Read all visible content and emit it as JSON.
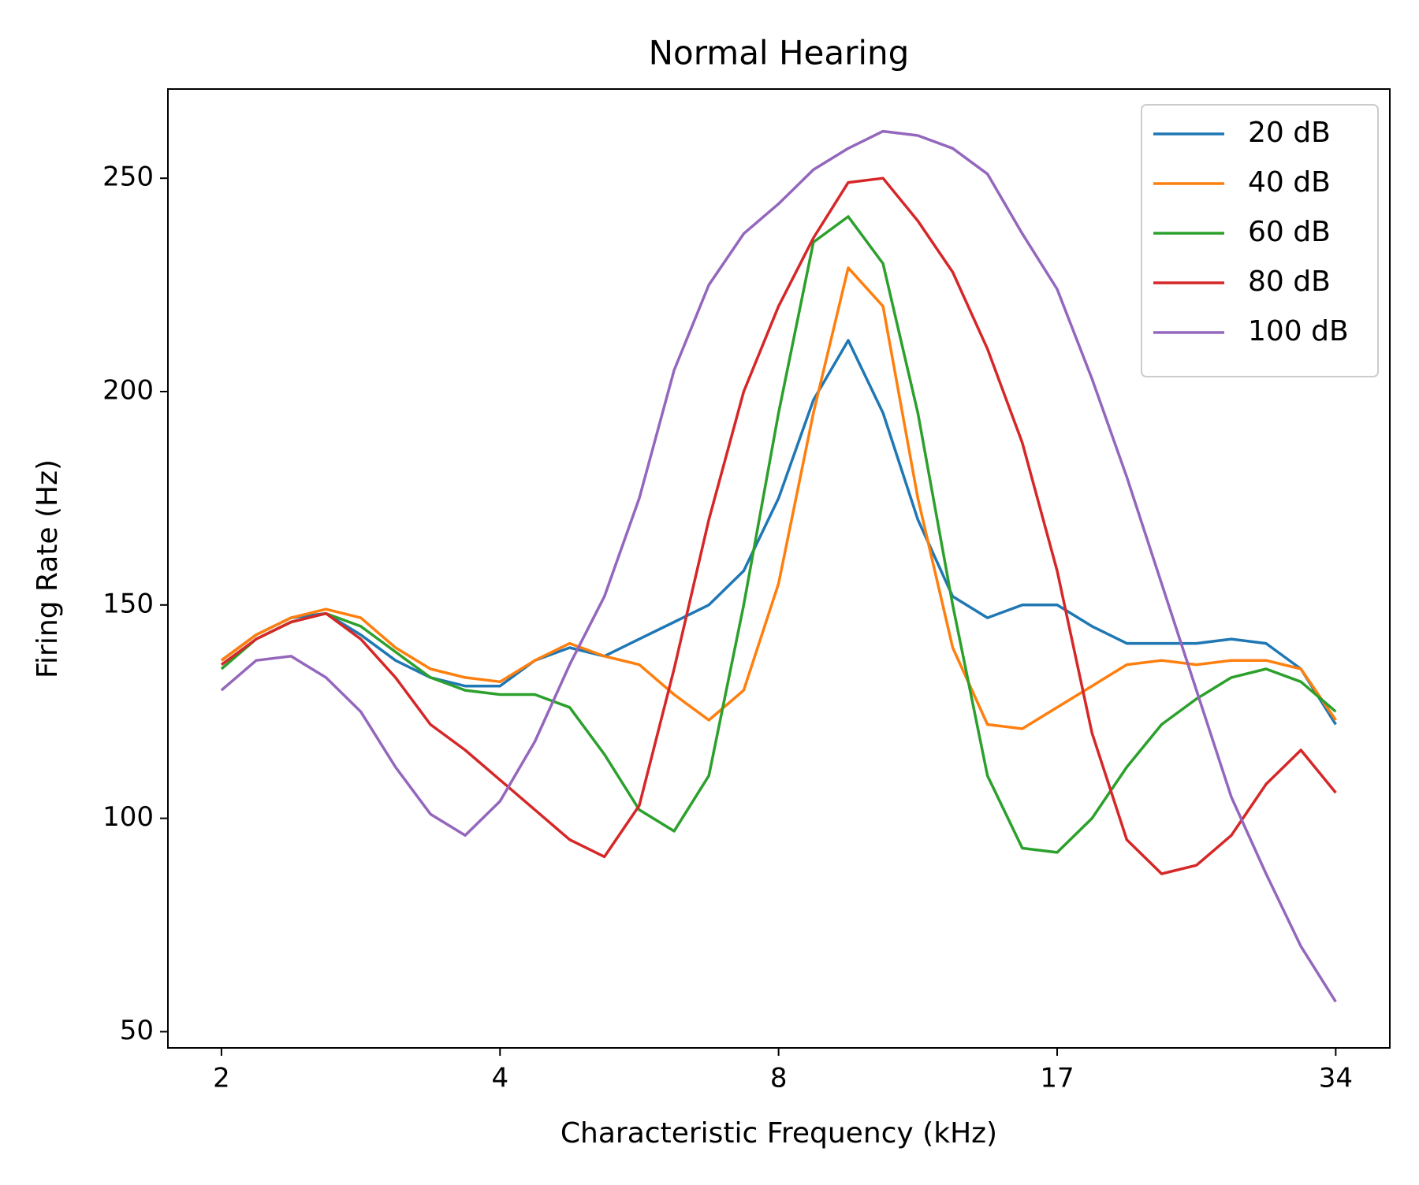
{
  "chart_data": {
    "type": "line",
    "title": "Normal Hearing",
    "x_label": "Characteristic Frequency (kHz)",
    "y_label": "Firing Rate (Hz)",
    "xscale": "log",
    "xlim": [
      1.86,
      38.9
    ],
    "ylim": [
      46.2,
      270.9
    ],
    "xticks": [
      {
        "value": 2.125,
        "label": "2"
      },
      {
        "value": 4.25,
        "label": "4"
      },
      {
        "value": 8.5,
        "label": "8"
      },
      17,
      34
    ],
    "yticks": [
      50,
      100,
      150,
      200,
      250
    ],
    "grid": false,
    "legend": "upper right",
    "x": [
      2.125,
      2.317,
      2.527,
      2.756,
      3.005,
      3.277,
      3.574,
      3.897,
      4.25,
      4.635,
      5.054,
      5.511,
      6.01,
      6.554,
      7.147,
      7.794,
      8.5,
      9.269,
      10.108,
      11.023,
      12.021,
      13.109,
      14.295,
      15.589,
      17,
      18.539,
      20.216,
      22.046,
      24.042,
      26.218,
      28.591,
      31.178,
      34
    ],
    "series": [
      {
        "name": "20 dB",
        "color": "#1f77b4",
        "values": [
          137,
          143,
          147,
          148,
          143,
          137,
          133,
          131,
          131,
          137,
          140,
          138,
          142,
          146,
          150,
          158,
          175,
          198,
          212,
          195,
          170,
          152,
          147,
          150,
          150,
          145,
          141,
          141,
          141,
          142,
          141,
          135,
          122
        ]
      },
      {
        "name": "40 dB",
        "color": "#ff7f0e",
        "values": [
          137,
          143,
          147,
          149,
          147,
          140,
          135,
          133,
          132,
          137,
          141,
          138,
          136,
          129,
          123,
          130,
          155,
          195,
          229,
          220,
          175,
          140,
          122,
          121,
          126,
          131,
          136,
          137,
          136,
          137,
          137,
          135,
          123
        ]
      },
      {
        "name": "60 dB",
        "color": "#2ca02c",
        "values": [
          135,
          142,
          146,
          148,
          145,
          139,
          133,
          130,
          129,
          129,
          126,
          115,
          102,
          97,
          110,
          150,
          195,
          235,
          241,
          230,
          195,
          150,
          110,
          93,
          92,
          100,
          112,
          122,
          128,
          133,
          135,
          132,
          125
        ]
      },
      {
        "name": "80 dB",
        "color": "#d62728",
        "values": [
          136,
          142,
          146,
          148,
          142,
          133,
          122,
          116,
          109,
          102,
          95,
          91,
          103,
          135,
          170,
          200,
          220,
          236,
          249,
          250,
          240,
          228,
          210,
          188,
          158,
          120,
          95,
          87,
          89,
          96,
          108,
          116,
          106
        ]
      },
      {
        "name": "100 dB",
        "color": "#9467bd",
        "values": [
          130,
          137,
          138,
          133,
          125,
          112,
          101,
          96,
          104,
          118,
          136,
          152,
          175,
          205,
          225,
          237,
          244,
          252,
          257,
          261,
          260,
          257,
          251,
          237,
          224,
          203,
          180,
          155,
          130,
          105,
          87,
          70,
          57
        ]
      }
    ]
  }
}
